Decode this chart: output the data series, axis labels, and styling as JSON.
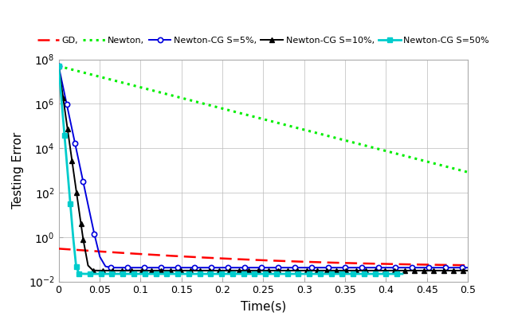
{
  "title": "",
  "xlabel": "Time(s)",
  "ylabel": "Testing Error",
  "xlim": [
    0,
    0.5
  ],
  "ylim": [
    0.01,
    100000000.0
  ],
  "legend": [
    "GD,",
    "Newton,",
    "Newton-CG S=5%,",
    "Newton-CG S=10%,",
    "Newton-CG S=50%"
  ],
  "background_color": "#ffffff",
  "figsize": [
    6.4,
    4.07
  ],
  "dpi": 100,
  "gd_color": "#ff0000",
  "newton_color": "#00ee00",
  "ncg5_color": "#0000dd",
  "ncg10_color": "#000000",
  "ncg50_color": "#00cccc"
}
